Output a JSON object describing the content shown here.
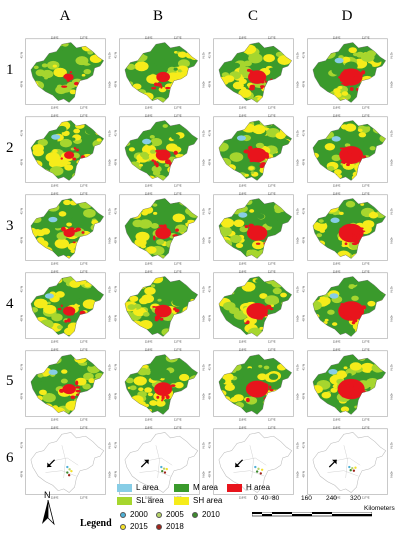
{
  "columns": [
    "A",
    "B",
    "C",
    "D"
  ],
  "rows": [
    "1",
    "2",
    "3",
    "4",
    "5",
    "6"
  ],
  "lon_ticks": [
    "116°E",
    "117°E"
  ],
  "lat_ticks": [
    "41°N",
    "40°N"
  ],
  "legend": {
    "title": "Legend",
    "classes": [
      {
        "label": "L area",
        "color": "#87cde6"
      },
      {
        "label": "M area",
        "color": "#3a9a2c"
      },
      {
        "label": "H area",
        "color": "#e8141c"
      },
      {
        "label": "SL area",
        "color": "#a6d62e"
      },
      {
        "label": "SH area",
        "color": "#f6ec1a"
      }
    ],
    "years": [
      {
        "label": "2000",
        "color": "#4fb0d6"
      },
      {
        "label": "2005",
        "color": "#b6d36a"
      },
      {
        "label": "2010",
        "color": "#3e8a2e"
      },
      {
        "label": "2015",
        "color": "#f3e02a"
      },
      {
        "label": "2018",
        "color": "#a0251c"
      }
    ]
  },
  "north_label": "N",
  "scale": {
    "ticks": [
      "0",
      "40",
      "80",
      "160",
      "240",
      "320"
    ],
    "unit": "Kilometers"
  }
}
